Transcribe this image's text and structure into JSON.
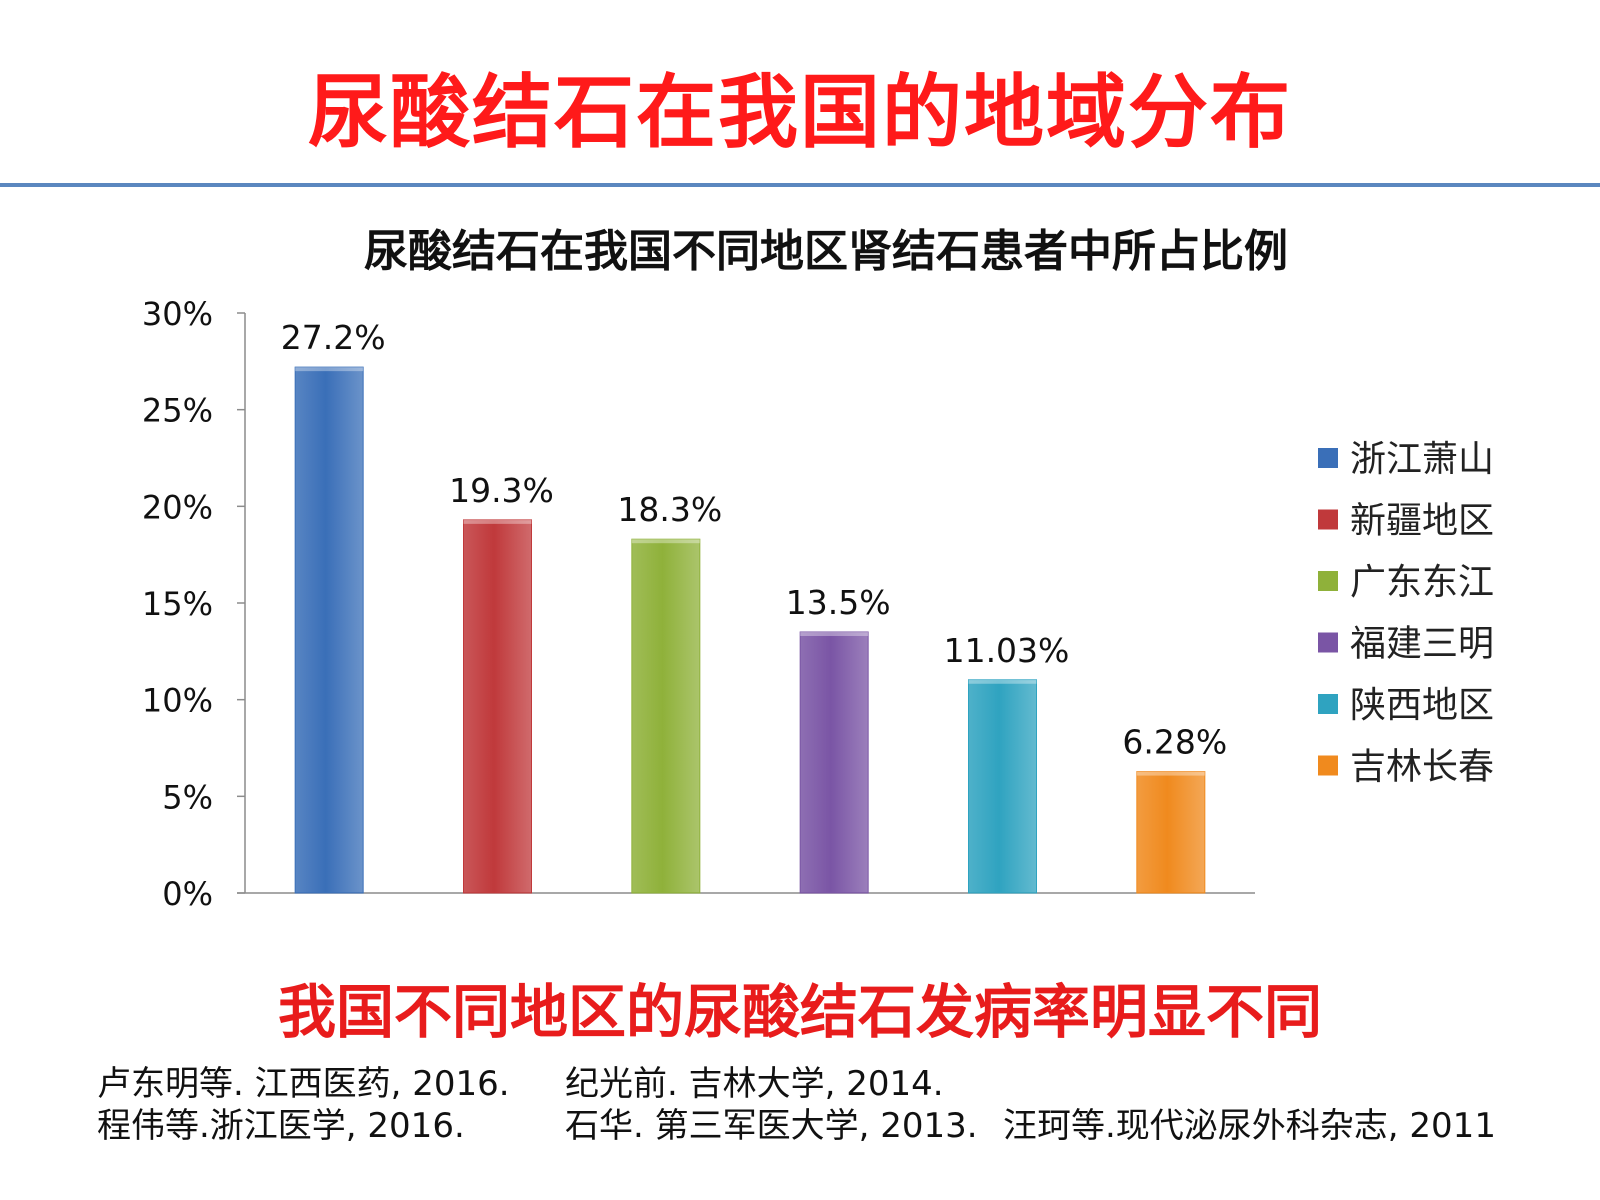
{
  "slide": {
    "title": "尿酸结石在我国的地域分布",
    "conclusion": "我国不同地区的尿酸结石发病率明显不同",
    "references": [
      "卢东明等. 江西医药, 2016.",
      "纪光前. 吉林大学, 2014.",
      "程伟等.浙江医学, 2016.",
      "石华. 第三军医大学, 2013.",
      "汪珂等.现代泌尿外科杂志, 2011"
    ]
  },
  "chart_data": {
    "type": "bar",
    "title": "尿酸结石在我国不同地区肾结石患者中所占比例",
    "categories": [
      "浙江萧山",
      "新疆地区",
      "广东东江",
      "福建三明",
      "陕西地区",
      "吉林长春"
    ],
    "values": [
      27.2,
      19.3,
      18.3,
      13.5,
      11.03,
      6.28
    ],
    "data_labels": [
      "27.2%",
      "19.3%",
      "18.3%",
      "13.5%",
      "11.03%",
      "6.28%"
    ],
    "colors": [
      "#3a6fb8",
      "#c0393b",
      "#8fb13a",
      "#7a55a5",
      "#2fa3c0",
      "#f08a1e"
    ],
    "ylim": [
      0,
      30
    ],
    "yticks": [
      "0%",
      "5%",
      "10%",
      "15%",
      "20%",
      "25%",
      "30%"
    ],
    "xlabel": "",
    "ylabel": "",
    "legend": "right",
    "grid": false
  }
}
